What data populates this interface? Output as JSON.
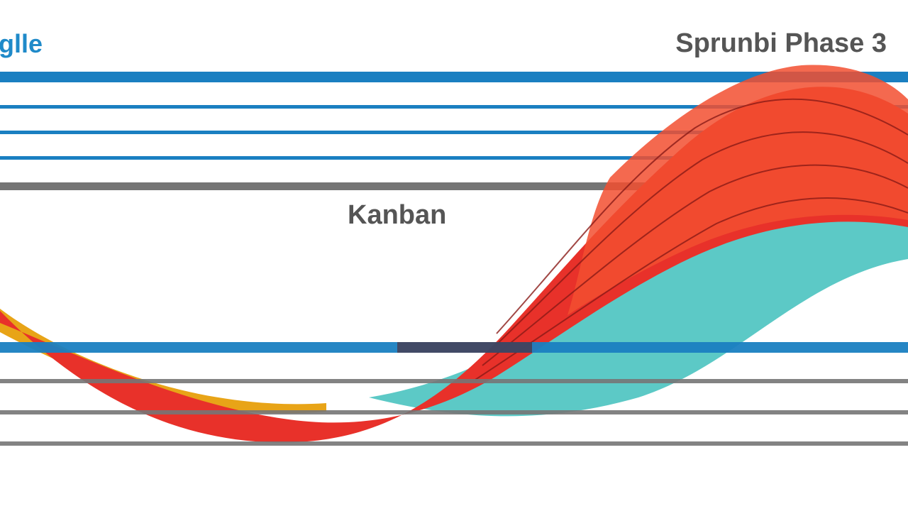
{
  "texts": {
    "left_label": "glle",
    "right_label": "Sprunbi Phase 3",
    "middle_label": "Kanban"
  },
  "colors": {
    "background": "#ffffff",
    "blue_line": "#1a7fc1",
    "gray_line": "#757575",
    "label_blue": "#1f8ac9",
    "label_gray": "#555555",
    "red": "#e8312a",
    "red_orange": "#f24f30",
    "teal": "#5cc9c6",
    "yellow": "#e8a417"
  },
  "icons": []
}
